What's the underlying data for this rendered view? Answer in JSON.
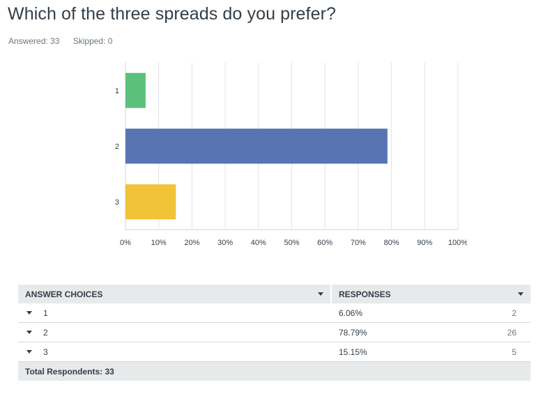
{
  "question": {
    "title": "Which of the three spreads do you prefer?",
    "answered_label": "Answered: 33",
    "skipped_label": "Skipped: 0"
  },
  "colors": {
    "choice1": "#5bc17a",
    "choice2": "#5775b3",
    "choice3": "#f0c339",
    "grid": "#e0e2e4",
    "axis": "#cfd2d4",
    "label": "#333e48"
  },
  "chart_data": {
    "type": "bar",
    "orientation": "horizontal",
    "categories": [
      "1",
      "2",
      "3"
    ],
    "values": [
      6.06,
      78.79,
      15.15
    ],
    "xlim": [
      0,
      100
    ],
    "xticks": [
      "0%",
      "10%",
      "20%",
      "30%",
      "40%",
      "50%",
      "60%",
      "70%",
      "80%",
      "90%",
      "100%"
    ],
    "grid": true
  },
  "table": {
    "headers": {
      "choices": "ANSWER CHOICES",
      "responses": "RESPONSES"
    },
    "rows": [
      {
        "choice": "1",
        "percent": "6.06%",
        "count": "2"
      },
      {
        "choice": "2",
        "percent": "78.79%",
        "count": "26"
      },
      {
        "choice": "3",
        "percent": "15.15%",
        "count": "5"
      }
    ],
    "total_label": "Total Respondents: 33"
  }
}
